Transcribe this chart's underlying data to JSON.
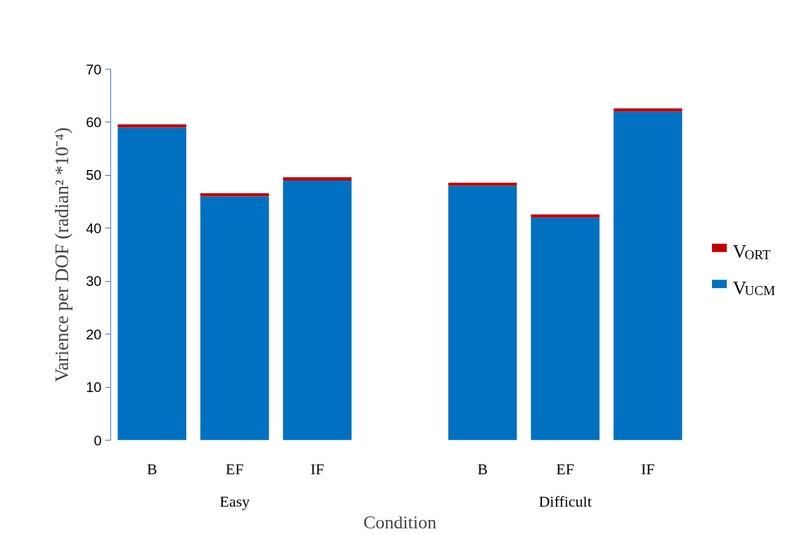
{
  "chart_data": {
    "type": "bar",
    "stacked": true,
    "categories": [
      "B",
      "EF",
      "IF",
      null,
      "B",
      "EF",
      "IF"
    ],
    "series": [
      {
        "name": "V$_{UCM}$",
        "color": "#0070c0",
        "values": [
          59,
          46,
          49,
          null,
          48,
          42,
          62
        ]
      },
      {
        "name": "V$_{ORT}$",
        "color": "#c00000",
        "values": [
          0.6,
          0.6,
          0.6,
          null,
          0.6,
          0.6,
          0.6
        ]
      }
    ],
    "ylim": [
      0,
      70
    ],
    "yticks": [
      0,
      10,
      20,
      30,
      40,
      50,
      60,
      70
    ],
    "grid": false,
    "legend": "right",
    "xlabel": "Condition",
    "ylabel": "Varience per DOF (radian² *10⁻⁴)",
    "annotations": [
      "Easy",
      "Difficult"
    ]
  }
}
